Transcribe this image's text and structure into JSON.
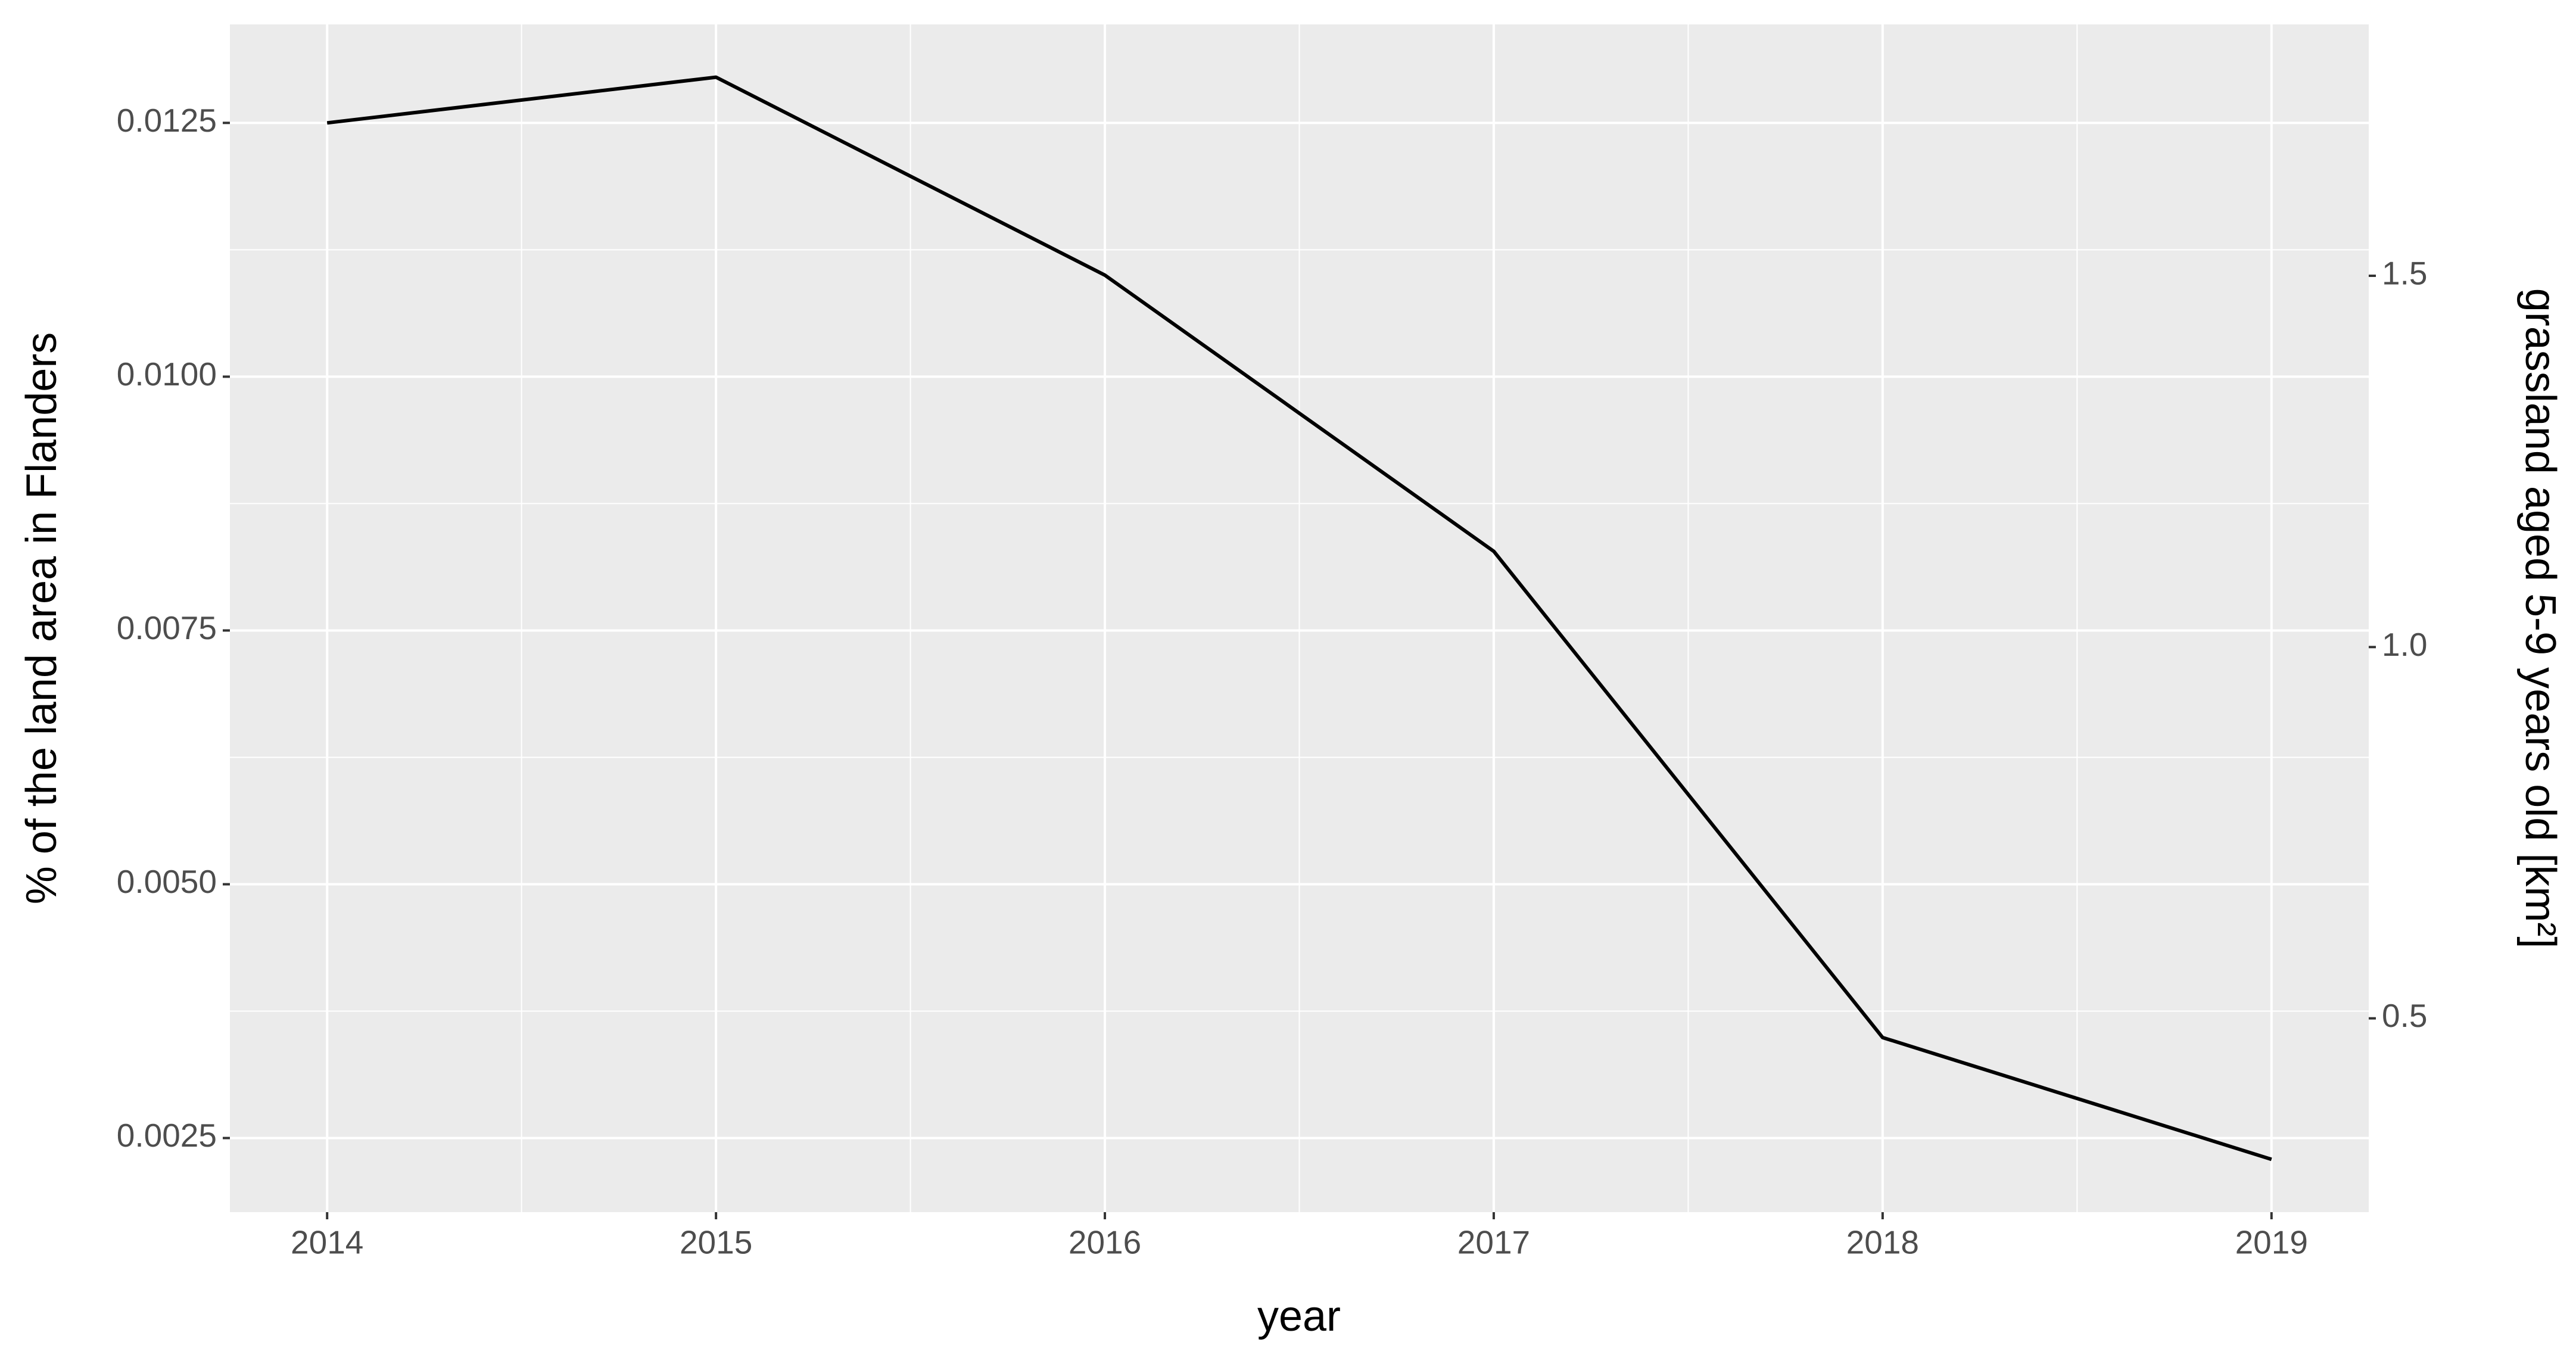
{
  "chart_data": {
    "type": "line",
    "x": [
      2014,
      2015,
      2016,
      2017,
      2018,
      2019
    ],
    "series": [
      {
        "color": "#000000",
        "values": [
          0.0125,
          0.01295,
          0.011,
          0.00828,
          0.00349,
          0.00229
        ]
      }
    ],
    "xlabel": "year",
    "ylabel": "% of the land area in Flanders",
    "y2label": "grassland aged 5-9 years old [km²]",
    "xlim": [
      2013.75,
      2019.25
    ],
    "xticks": [
      2014,
      2015,
      2016,
      2017,
      2018,
      2019
    ],
    "ylim": [
      0.00177,
      0.01347
    ],
    "yticks": [
      0.0025,
      {
        "value": 0.005,
        "label": "0.0050"
      },
      0.0075,
      {
        "value": 0.01,
        "label": "0.0100"
      },
      0.0125
    ],
    "y2lim": [
      0.239,
      1.8385
    ],
    "y2ticks": [
      0.5,
      {
        "value": 1.0,
        "label": "1.0"
      },
      1.5
    ],
    "grid": true
  }
}
